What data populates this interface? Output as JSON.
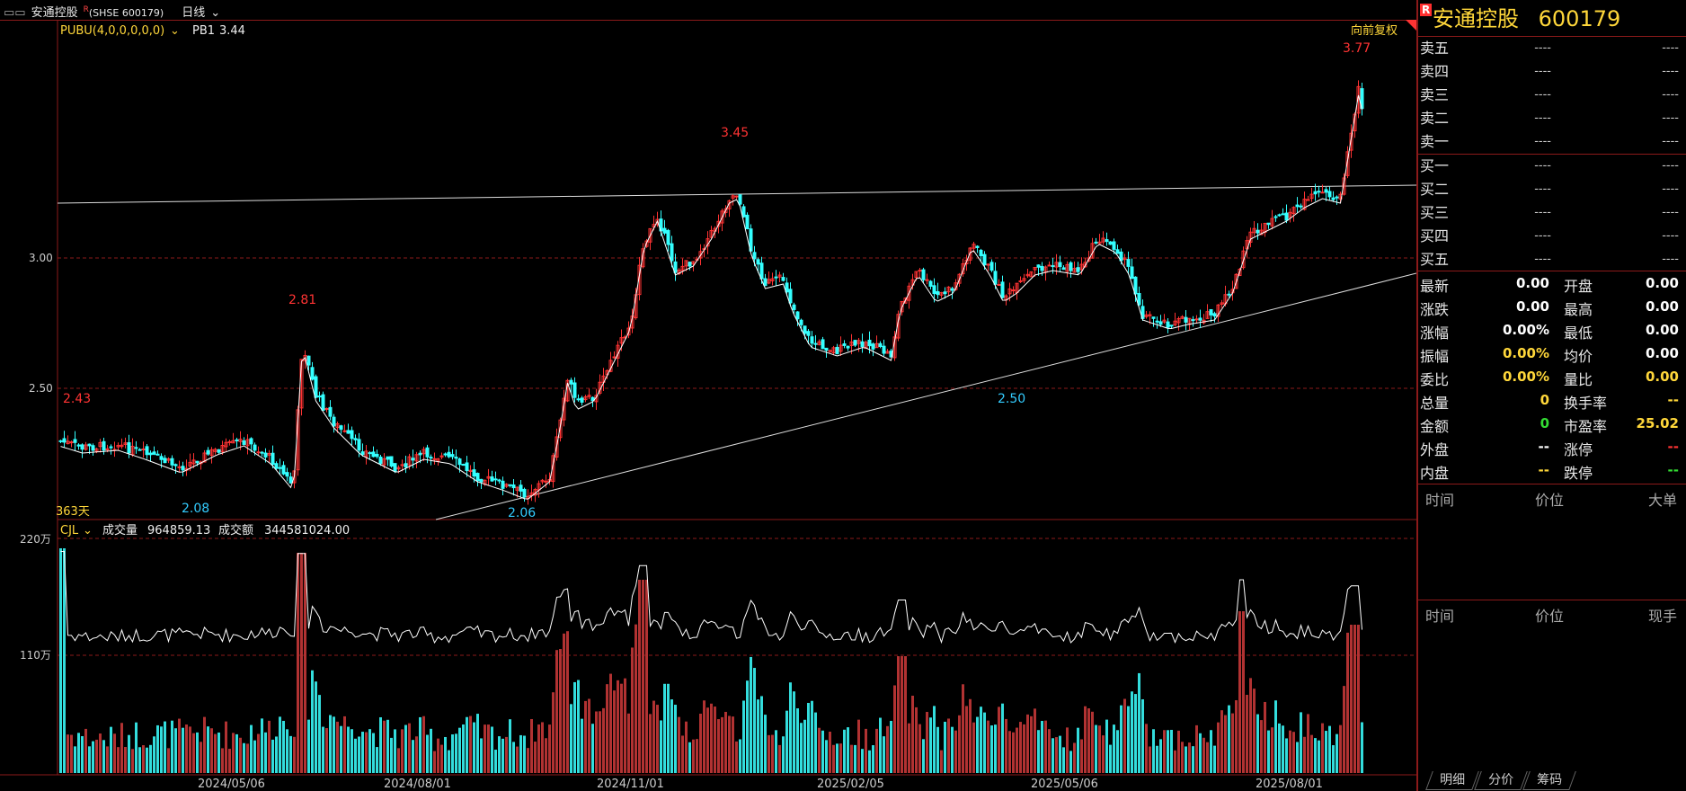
{
  "topbar": {
    "name": "安通控股",
    "r_mark": "R",
    "code": "(SHSE 600179)",
    "period": "日线",
    "chevron": "chevron-down-icon"
  },
  "main_chart": {
    "indicator": "PUBU(4,0,0,0,0,0)",
    "pb1_label": "PB1",
    "pb1_value": "3.44",
    "adjust": "向前复权",
    "days_label": "363天",
    "y_ticks": [
      "3.00",
      "2.50"
    ],
    "peak_labels": [
      "3.77",
      "3.45",
      "2.81",
      "2.43"
    ],
    "trough_labels": [
      "2.08",
      "2.06",
      "2.50"
    ]
  },
  "volume_chart": {
    "indicator": "CJL",
    "volume_label": "成交量",
    "volume_value": "964859.13",
    "amount_label": "成交额",
    "amount_value": "344581024.00",
    "y_ticks": [
      "220万",
      "110万"
    ]
  },
  "x_axis": [
    "2024/05/06",
    "2024/08/01",
    "2024/11/01",
    "2025/02/05",
    "2025/05/06",
    "2025/08/01"
  ],
  "panel": {
    "r_mark": "R",
    "name": "安通控股",
    "code": "600179",
    "asks": [
      {
        "label": "卖五",
        "price": "----",
        "vol": "----"
      },
      {
        "label": "卖四",
        "price": "----",
        "vol": "----"
      },
      {
        "label": "卖三",
        "price": "----",
        "vol": "----"
      },
      {
        "label": "卖二",
        "price": "----",
        "vol": "----"
      },
      {
        "label": "卖一",
        "price": "----",
        "vol": "----"
      }
    ],
    "bids": [
      {
        "label": "买一",
        "price": "----",
        "vol": "----"
      },
      {
        "label": "买二",
        "price": "----",
        "vol": "----"
      },
      {
        "label": "买三",
        "price": "----",
        "vol": "----"
      },
      {
        "label": "买四",
        "price": "----",
        "vol": "----"
      },
      {
        "label": "买五",
        "price": "----",
        "vol": "----"
      }
    ],
    "quote": [
      {
        "l1": "最新",
        "v1": "0.00",
        "c1": "#ffffff",
        "l2": "开盘",
        "v2": "0.00",
        "c2": "#ffffff"
      },
      {
        "l1": "涨跌",
        "v1": "0.00",
        "c1": "#ffffff",
        "l2": "最高",
        "v2": "0.00",
        "c2": "#ffffff"
      },
      {
        "l1": "涨幅",
        "v1": "0.00%",
        "c1": "#ffffff",
        "l2": "最低",
        "v2": "0.00",
        "c2": "#ffffff"
      },
      {
        "l1": "振幅",
        "v1": "0.00%",
        "c1": "#ffd73a",
        "l2": "均价",
        "v2": "0.00",
        "c2": "#ffffff"
      },
      {
        "l1": "委比",
        "v1": "0.00%",
        "c1": "#ffd73a",
        "l2": "量比",
        "v2": "0.00",
        "c2": "#ffd73a"
      },
      {
        "l1": "总量",
        "v1": "0",
        "c1": "#ffd73a",
        "l2": "换手率",
        "v2": "--",
        "c2": "#ffd73a"
      },
      {
        "l1": "金额",
        "v1": "0",
        "c1": "#33dd33",
        "l2": "市盈率",
        "v2": "25.02",
        "c2": "#ffd73a"
      },
      {
        "l1": "外盘",
        "v1": "--",
        "c1": "#ffffff",
        "l2": "涨停",
        "v2": "--",
        "c2": "#ff3333"
      },
      {
        "l1": "内盘",
        "v1": "--",
        "c1": "#ffd73a",
        "l2": "跌停",
        "v2": "--",
        "c2": "#33dd33"
      }
    ],
    "trades_header": {
      "time": "时间",
      "price": "价位",
      "big": "大单"
    },
    "ticks_header": {
      "time": "时间",
      "price": "价位",
      "vol": "现手"
    },
    "tabs": [
      "明细",
      "分价",
      "筹码"
    ]
  },
  "colors": {
    "up": "#ff3333",
    "down": "#33ffff",
    "grid": "#8b1a1a",
    "label_up": "#ff3333",
    "label_down": "#33ccff"
  }
}
